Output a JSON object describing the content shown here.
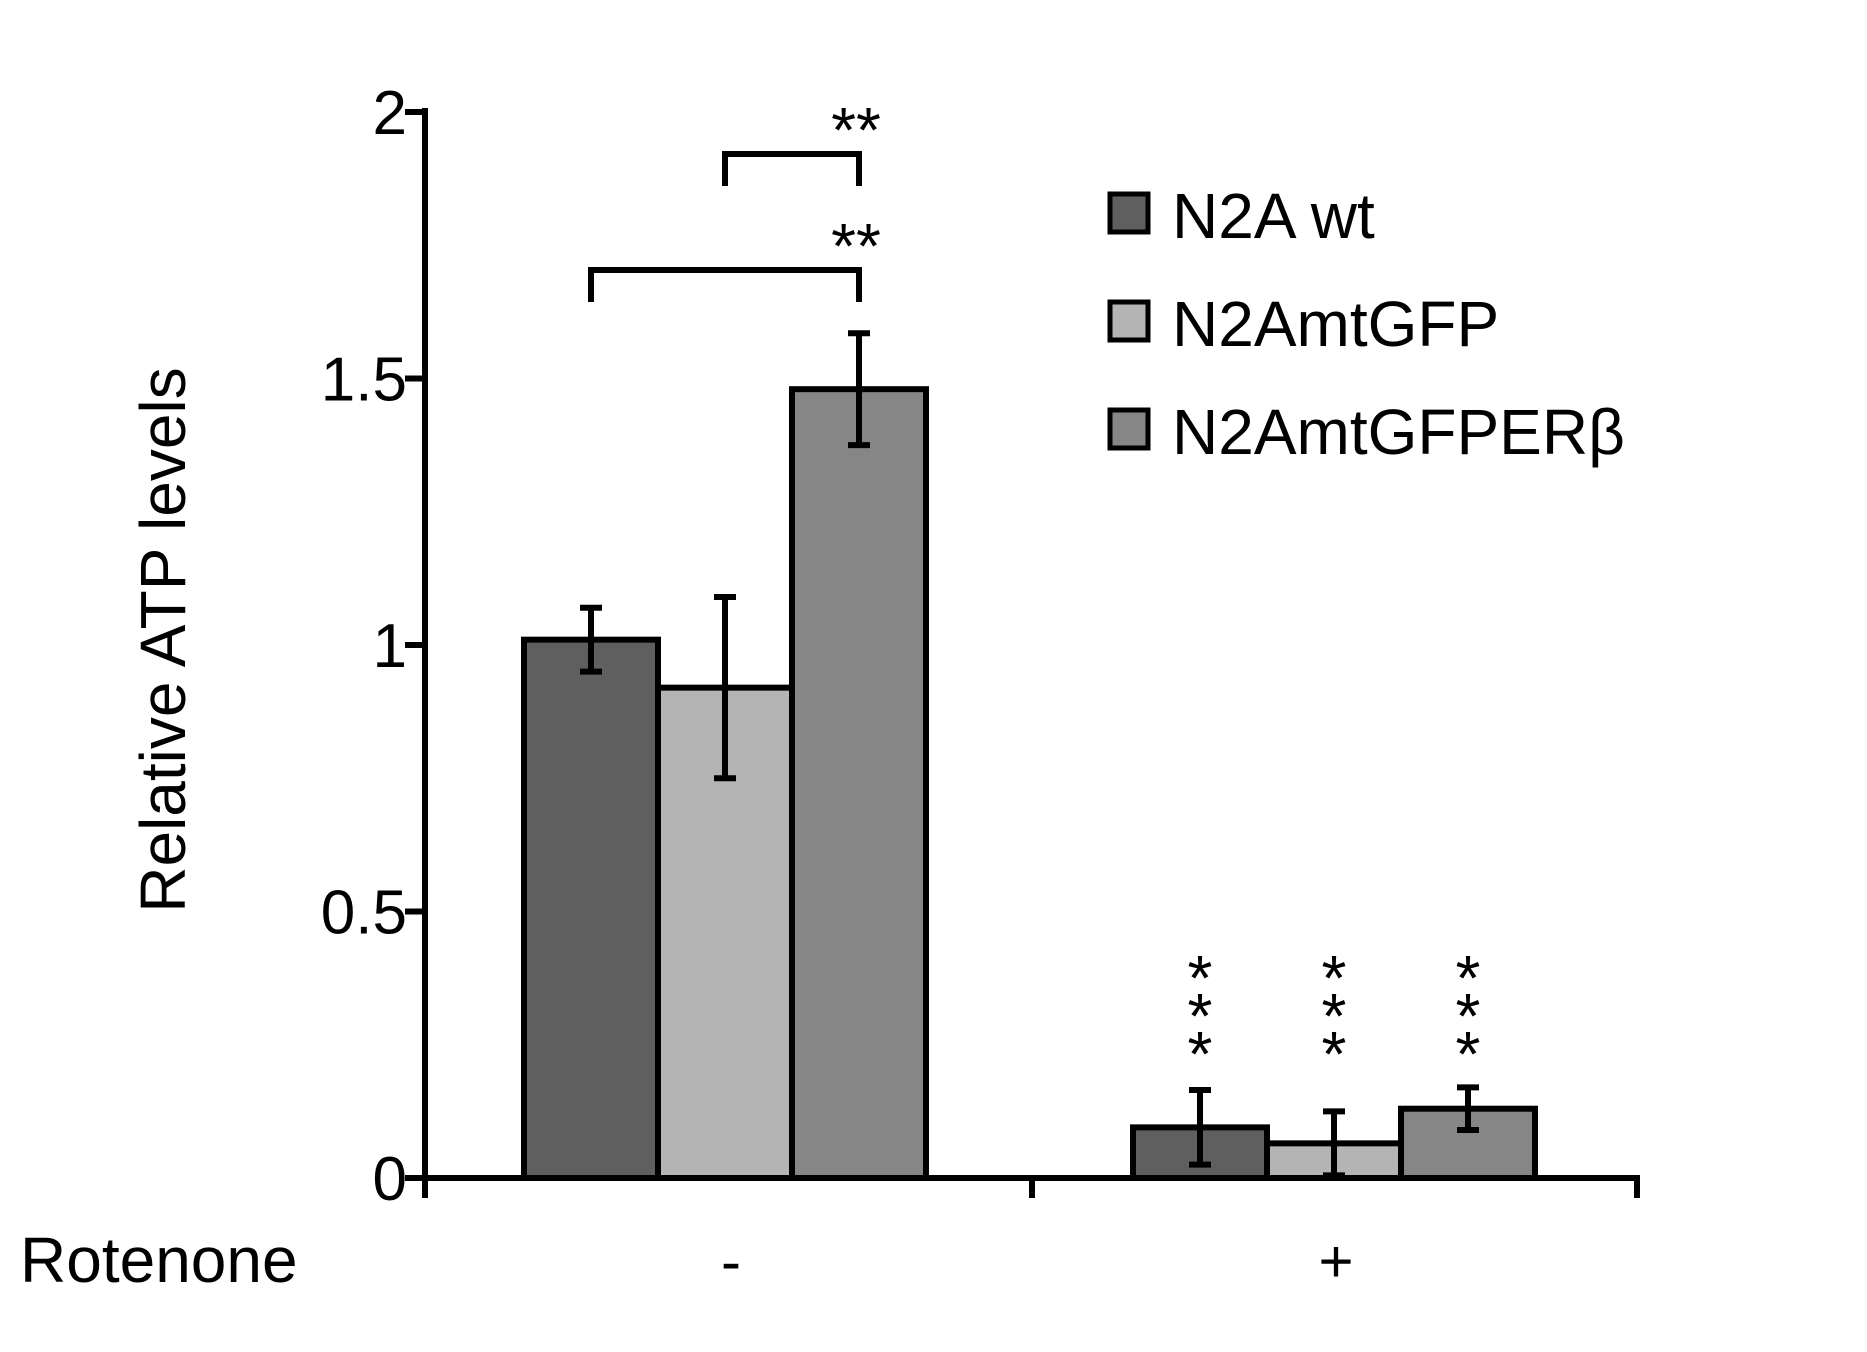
{
  "chart_data": {
    "type": "bar",
    "title": "",
    "xlabel": "",
    "ylabel": "Relative ATP levels",
    "row_label": "Rotenone",
    "categories": [
      "-",
      "+"
    ],
    "ylim": [
      0,
      2
    ],
    "yticks": [
      "0",
      "0.5",
      "1",
      "1.5",
      "2"
    ],
    "series": [
      {
        "name": "N2A wt",
        "color": "#5f5f5f",
        "values": [
          1.01,
          0.095
        ],
        "errors": [
          0.06,
          0.07
        ]
      },
      {
        "name": "N2AmtGFP",
        "color": "#b4b4b4",
        "values": [
          0.92,
          0.065
        ],
        "errors": [
          0.17,
          0.06
        ]
      },
      {
        "name": "N2AmtGFPERβ",
        "color": "#868686",
        "values": [
          1.48,
          0.13
        ],
        "errors": [
          0.105,
          0.04
        ]
      }
    ],
    "annotations": {
      "brackets": [
        {
          "from_series": 1,
          "to_series": 2,
          "category": 0,
          "label": "**"
        },
        {
          "from_series": 0,
          "to_series": 2,
          "category": 0,
          "label": "**"
        }
      ],
      "bar_stars": [
        {
          "series": 0,
          "category": 1,
          "label": "***"
        },
        {
          "series": 1,
          "category": 1,
          "label": "***"
        },
        {
          "series": 2,
          "category": 1,
          "label": "***"
        }
      ]
    },
    "legend_position": "top-right",
    "grid": false
  }
}
